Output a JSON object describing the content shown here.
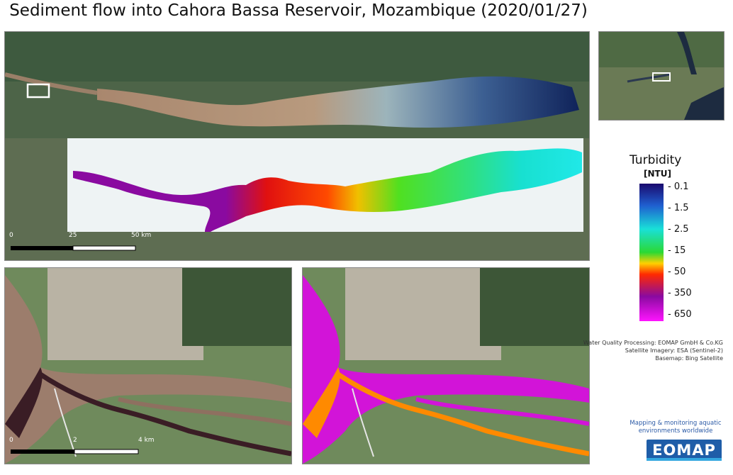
{
  "title": "Sediment flow into Cahora Bassa Reservoir, Mozambique (2020/01/27)",
  "legend": {
    "title": "Turbidity",
    "unit": "[NTU]",
    "ticks": [
      "- 0.1",
      "- 1.5",
      "- 2.5",
      "- 15",
      "- 50",
      "- 350",
      "- 650"
    ],
    "colors": [
      "#1a0a6e",
      "#1f5fd0",
      "#19e0d8",
      "#2bd934",
      "#ff2a00",
      "#8a0aa0",
      "#ff14ff"
    ]
  },
  "main_scale": {
    "labels": [
      "0",
      "25",
      "50 km"
    ]
  },
  "detail_scale": {
    "labels": [
      "0",
      "2",
      "4 km"
    ]
  },
  "credits": [
    "Water Quality Processing: EOMAP GmbH & Co.KG",
    "Satellite Imagery: ESA (Sentinel-2)",
    "Basemap: Bing Satellite"
  ],
  "tagline": "Mapping & monitoring aquatic environments worldwide",
  "logo": "EOMAP"
}
